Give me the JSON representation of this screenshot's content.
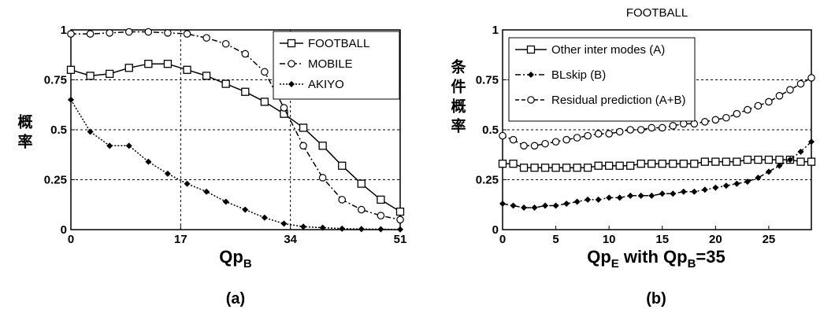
{
  "chart_data": [
    {
      "type": "line",
      "panel_label": "(a)",
      "title": "",
      "xlabel_main": "Qp",
      "xlabel_sub": "B",
      "ylabel": "概率",
      "xlim": [
        0,
        51
      ],
      "ylim": [
        0,
        1
      ],
      "xticks": [
        0,
        17,
        34,
        51
      ],
      "xtick_labels": [
        "0",
        "17",
        "34",
        "51"
      ],
      "yticks": [
        0,
        0.25,
        0.5,
        0.75,
        1
      ],
      "ytick_labels": [
        "0",
        "0.25",
        "0.5",
        "0.75",
        "1"
      ],
      "grid": true,
      "legend_position": "top-right",
      "series": [
        {
          "name": "FOOTBALL",
          "marker": "square",
          "line_style": "solid",
          "x": [
            0,
            3,
            6,
            9,
            12,
            15,
            18,
            21,
            24,
            27,
            30,
            33,
            36,
            39,
            42,
            45,
            48,
            51
          ],
          "y": [
            0.8,
            0.77,
            0.78,
            0.81,
            0.83,
            0.83,
            0.8,
            0.77,
            0.73,
            0.69,
            0.64,
            0.58,
            0.51,
            0.42,
            0.32,
            0.23,
            0.15,
            0.09
          ]
        },
        {
          "name": "MOBILE",
          "marker": "circle",
          "line_style": "dashdot",
          "x": [
            0,
            3,
            6,
            9,
            12,
            15,
            18,
            21,
            24,
            27,
            30,
            33,
            36,
            39,
            42,
            45,
            48,
            51
          ],
          "y": [
            0.98,
            0.98,
            0.985,
            0.99,
            0.99,
            0.985,
            0.98,
            0.96,
            0.93,
            0.88,
            0.79,
            0.61,
            0.42,
            0.26,
            0.15,
            0.1,
            0.07,
            0.05
          ]
        },
        {
          "name": "AKIYO",
          "marker": "diamond",
          "line_style": "dotted",
          "x": [
            0,
            3,
            6,
            9,
            12,
            15,
            18,
            21,
            24,
            27,
            30,
            33,
            36,
            39,
            42,
            45,
            48,
            51
          ],
          "y": [
            0.65,
            0.49,
            0.42,
            0.42,
            0.34,
            0.28,
            0.23,
            0.19,
            0.14,
            0.1,
            0.06,
            0.03,
            0.015,
            0.01,
            0.005,
            0.003,
            0.002,
            0.001
          ]
        }
      ]
    },
    {
      "type": "line",
      "panel_label": "(b)",
      "title": "FOOTBALL",
      "xlabel_main": "Qp",
      "xlabel_sub": "E",
      "xlabel_mid": " with Qp",
      "xlabel_sub2": "B",
      "xlabel_tail": "=35",
      "ylabel": "条件概率",
      "xlim": [
        0,
        29
      ],
      "ylim": [
        0,
        1
      ],
      "xticks": [
        0,
        5,
        10,
        15,
        20,
        25
      ],
      "xtick_labels": [
        "0",
        "5",
        "10",
        "15",
        "20",
        "25"
      ],
      "yticks": [
        0,
        0.25,
        0.5,
        0.75,
        1
      ],
      "ytick_labels": [
        "0",
        "0.25",
        "0.5",
        "0.75",
        "1"
      ],
      "grid": true,
      "legend_position": "top-left",
      "series": [
        {
          "name": "Other inter modes (A)",
          "marker": "square",
          "line_style": "solid",
          "x": [
            0,
            1,
            2,
            3,
            4,
            5,
            6,
            7,
            8,
            9,
            10,
            11,
            12,
            13,
            14,
            15,
            16,
            17,
            18,
            19,
            20,
            21,
            22,
            23,
            24,
            25,
            26,
            27,
            28,
            29
          ],
          "y": [
            0.33,
            0.33,
            0.31,
            0.31,
            0.31,
            0.31,
            0.31,
            0.31,
            0.31,
            0.32,
            0.32,
            0.32,
            0.32,
            0.33,
            0.33,
            0.33,
            0.33,
            0.33,
            0.33,
            0.34,
            0.34,
            0.34,
            0.34,
            0.35,
            0.35,
            0.35,
            0.35,
            0.35,
            0.34,
            0.34
          ]
        },
        {
          "name": "BLskip (B)",
          "marker": "diamond",
          "line_style": "dashdot",
          "x": [
            0,
            1,
            2,
            3,
            4,
            5,
            6,
            7,
            8,
            9,
            10,
            11,
            12,
            13,
            14,
            15,
            16,
            17,
            18,
            19,
            20,
            21,
            22,
            23,
            24,
            25,
            26,
            27,
            28,
            29
          ],
          "y": [
            0.13,
            0.12,
            0.11,
            0.11,
            0.12,
            0.12,
            0.13,
            0.14,
            0.15,
            0.15,
            0.16,
            0.16,
            0.17,
            0.17,
            0.17,
            0.18,
            0.18,
            0.19,
            0.19,
            0.2,
            0.21,
            0.22,
            0.23,
            0.24,
            0.26,
            0.29,
            0.32,
            0.35,
            0.39,
            0.44
          ]
        },
        {
          "name": "Residual prediction (A+B)",
          "marker": "circle",
          "line_style": "dashed",
          "x": [
            0,
            1,
            2,
            3,
            4,
            5,
            6,
            7,
            8,
            9,
            10,
            11,
            12,
            13,
            14,
            15,
            16,
            17,
            18,
            19,
            20,
            21,
            22,
            23,
            24,
            25,
            26,
            27,
            28,
            29
          ],
          "y": [
            0.47,
            0.45,
            0.42,
            0.42,
            0.43,
            0.44,
            0.45,
            0.46,
            0.47,
            0.48,
            0.48,
            0.49,
            0.5,
            0.5,
            0.51,
            0.51,
            0.52,
            0.53,
            0.53,
            0.54,
            0.55,
            0.56,
            0.58,
            0.6,
            0.62,
            0.64,
            0.67,
            0.7,
            0.73,
            0.76
          ]
        }
      ]
    }
  ]
}
